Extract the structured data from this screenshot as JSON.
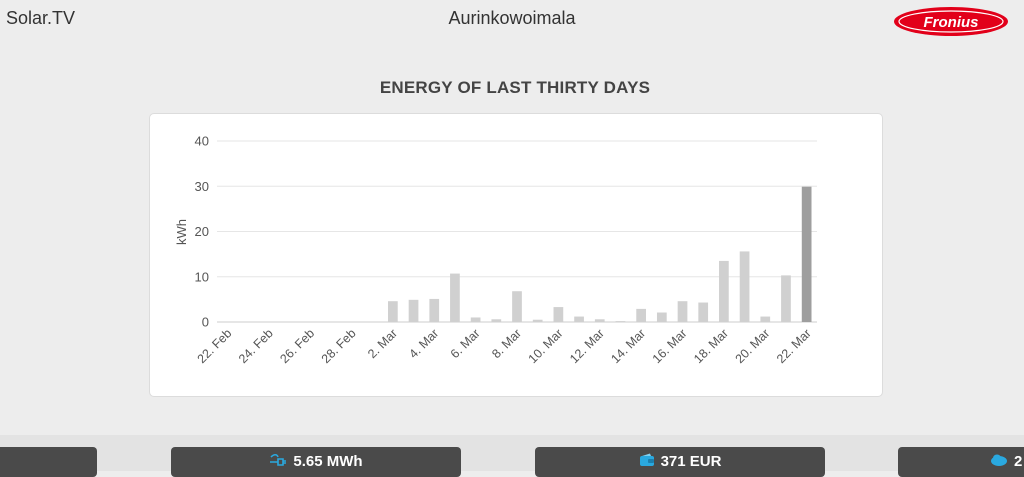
{
  "header": {
    "app_title": "Solar.TV",
    "site_name": "Aurinkowoimala",
    "logo_text": "Fronius"
  },
  "chart_data": {
    "type": "bar",
    "title": "ENERGY OF LAST THIRTY DAYS",
    "ylabel": "kWh",
    "xlabel": "",
    "ylim": [
      0,
      40
    ],
    "yticks": [
      0,
      10,
      20,
      30,
      40
    ],
    "categories": [
      "22. Feb",
      "23. Feb",
      "24. Feb",
      "25. Feb",
      "26. Feb",
      "27. Feb",
      "28. Feb",
      "1. Mar",
      "2. Mar",
      "3. Mar",
      "4. Mar",
      "5. Mar",
      "6. Mar",
      "7. Mar",
      "8. Mar",
      "9. Mar",
      "10. Mar",
      "11. Mar",
      "12. Mar",
      "13. Mar",
      "14. Mar",
      "15. Mar",
      "16. Mar",
      "17. Mar",
      "18. Mar",
      "19. Mar",
      "20. Mar",
      "21. Mar",
      "22. Mar"
    ],
    "xtick_labels": [
      "22. Feb",
      "24. Feb",
      "26. Feb",
      "28. Feb",
      "2. Mar",
      "4. Mar",
      "6. Mar",
      "8. Mar",
      "10. Mar",
      "12. Mar",
      "14. Mar",
      "16. Mar",
      "18. Mar",
      "20. Mar",
      "22. Mar"
    ],
    "values": [
      0,
      0,
      0,
      0,
      0,
      0,
      0,
      0,
      4.6,
      4.9,
      5.1,
      10.7,
      1.0,
      0.6,
      6.8,
      0.5,
      3.3,
      1.2,
      0.6,
      0.2,
      2.9,
      2.1,
      4.6,
      4.3,
      13.5,
      15.6,
      1.2,
      10.3,
      29.9
    ],
    "highlight_index": 28,
    "colors": {
      "bar": "#d0d0d0",
      "highlight": "#9e9e9e",
      "grid": "#e6e6e6"
    },
    "grid": true
  },
  "footer": {
    "stats": [
      {
        "value": "",
        "icon": ""
      },
      {
        "value": "5.65 MWh",
        "icon": "plug-icon"
      },
      {
        "value": "371 EUR",
        "icon": "wallet-icon"
      },
      {
        "value": "2",
        "icon": "co2-icon"
      }
    ]
  }
}
